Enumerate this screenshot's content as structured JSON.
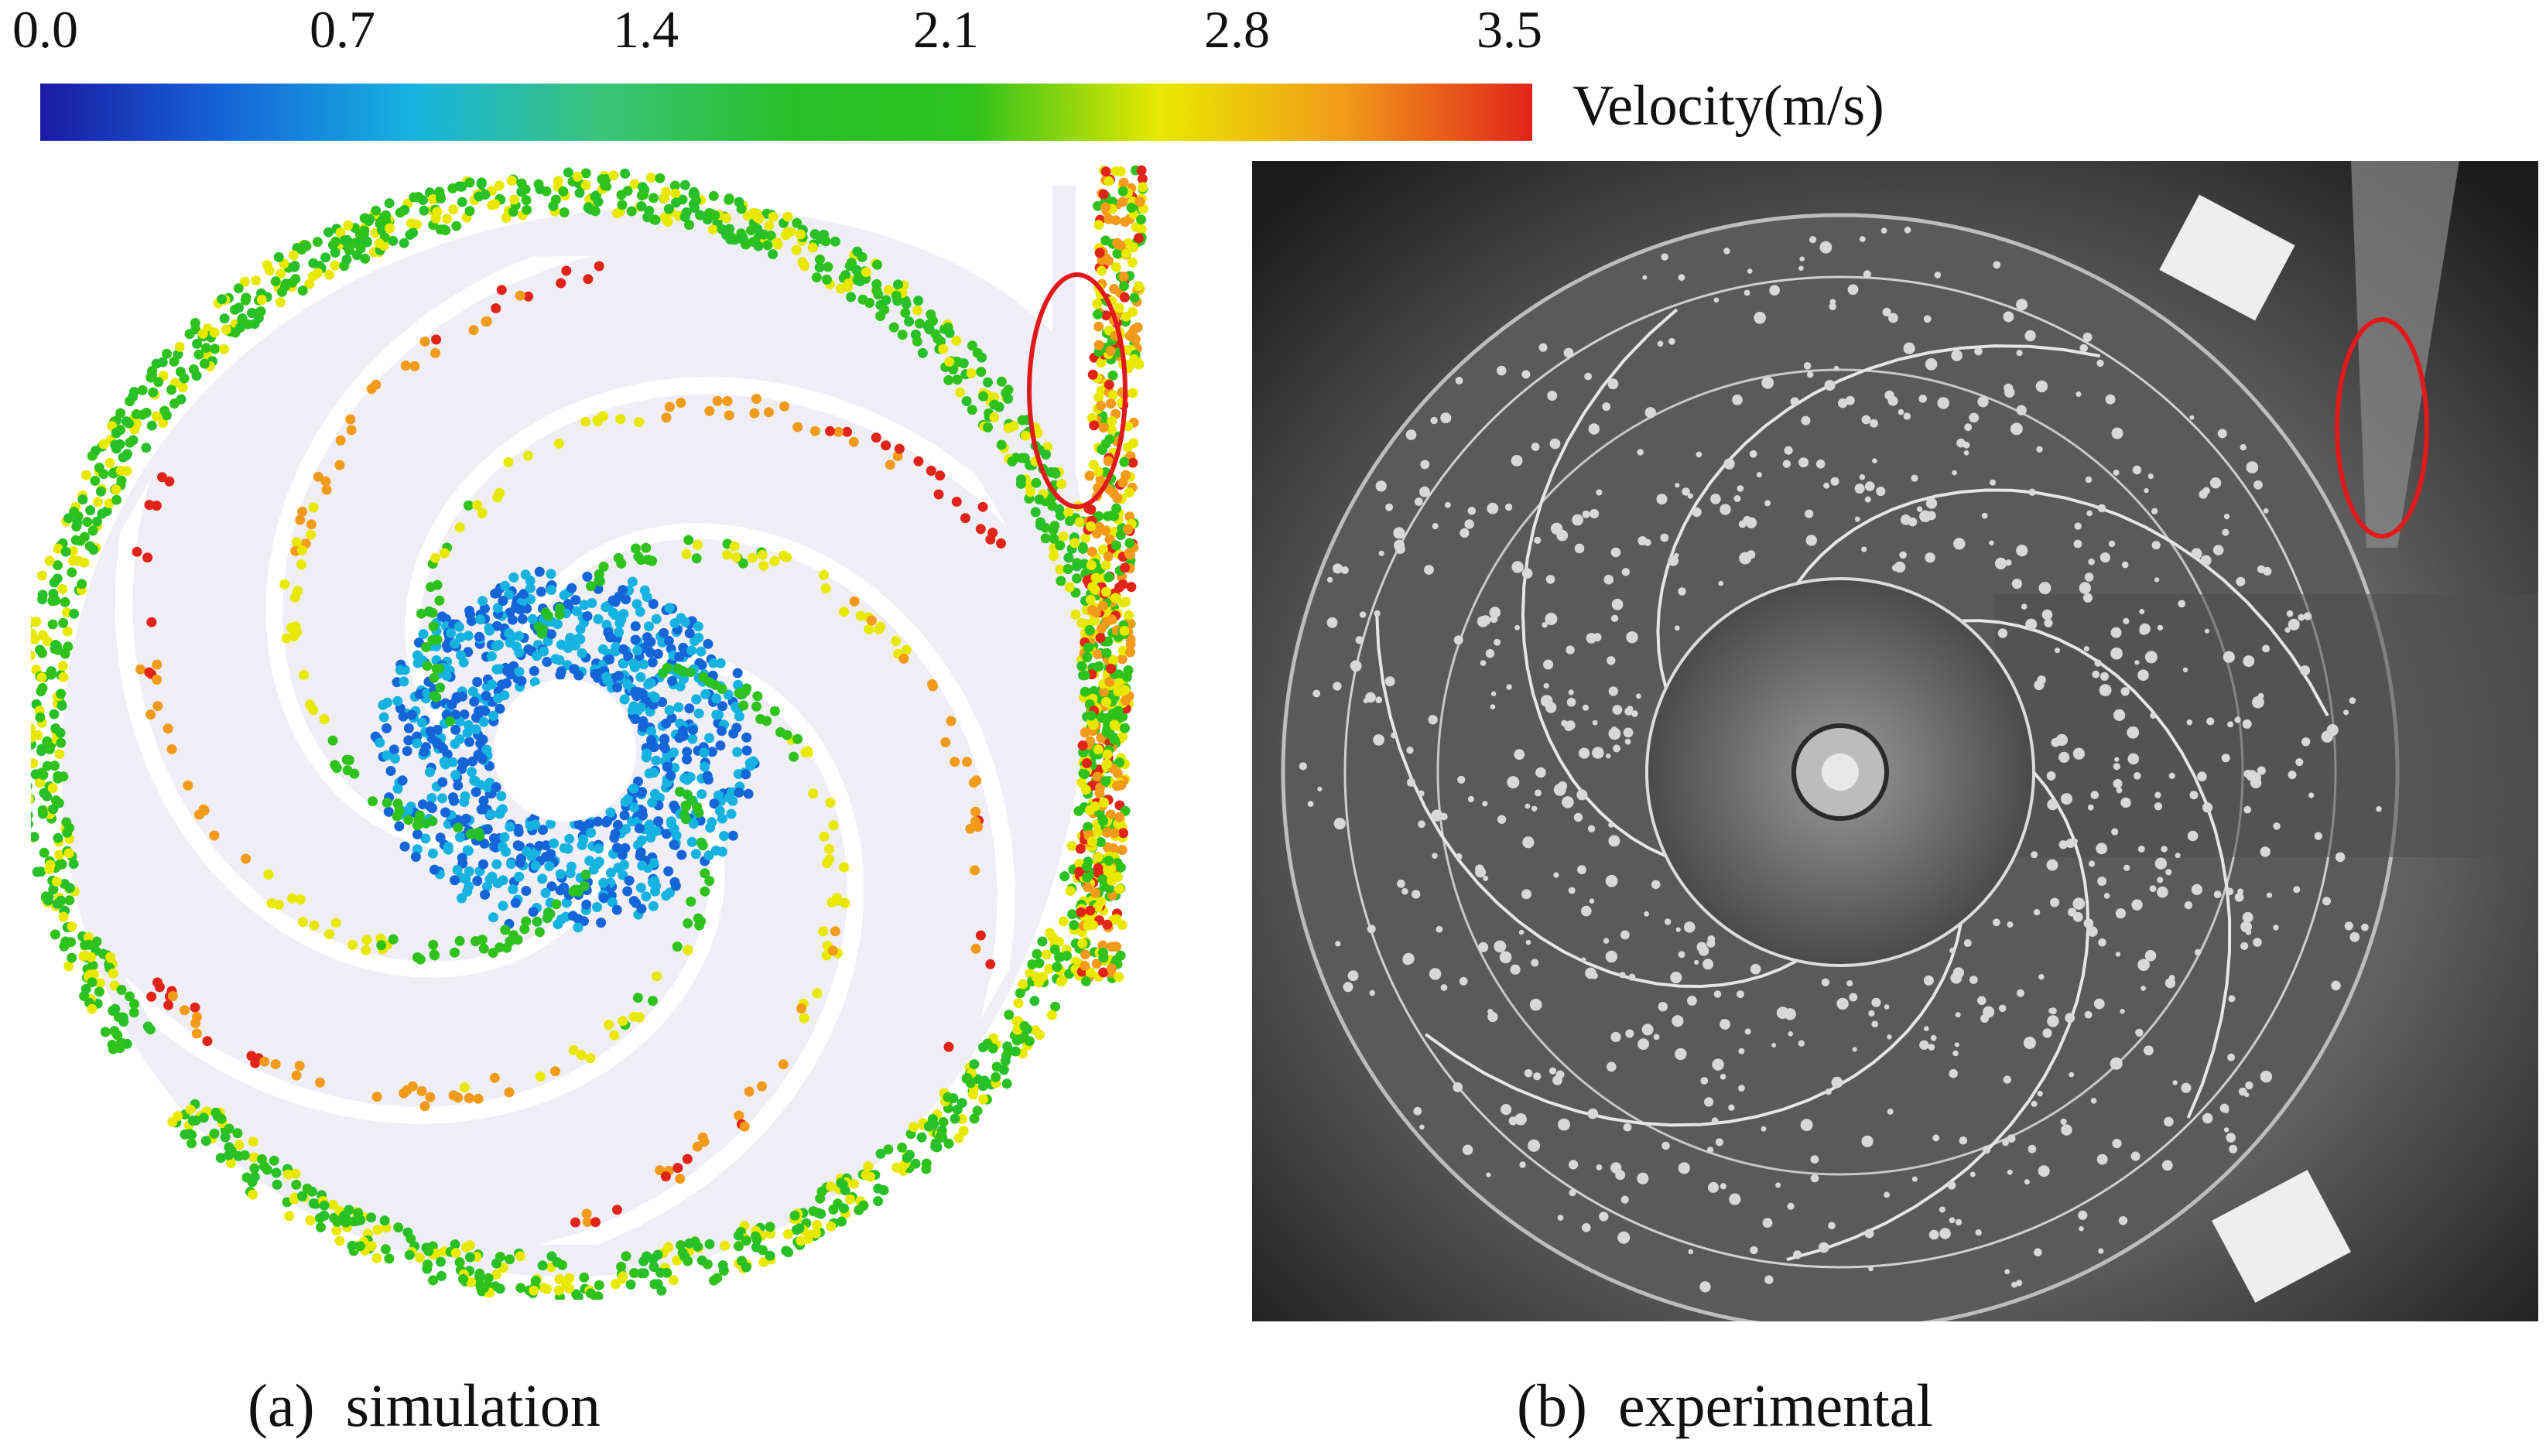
{
  "colorbar": {
    "ticks": [
      "0.0",
      "0.7",
      "1.4",
      "2.1",
      "2.8",
      "3.5"
    ],
    "label": "Velocity(m/s)",
    "min": 0.0,
    "max": 3.5,
    "colors": [
      "#1a1aa6",
      "#1565d8",
      "#17b3e0",
      "#3ac47a",
      "#27bf2a",
      "#2fc21c",
      "#e8e800",
      "#f29a1a",
      "#e0241a"
    ]
  },
  "panels": [
    {
      "letter": "(a)",
      "title": "simulation"
    },
    {
      "letter": "(b)",
      "title": "experimental"
    }
  ],
  "highlight_color": "#e01a1a"
}
